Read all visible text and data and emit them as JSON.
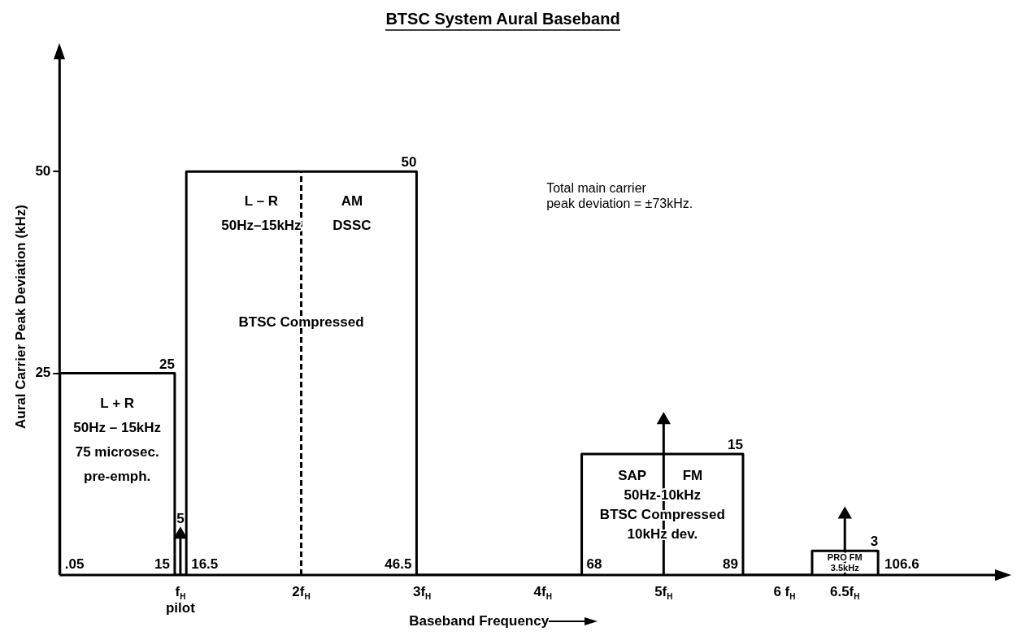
{
  "chart_data": {
    "type": "histogram",
    "title": "BTSC System Aural Baseband",
    "xlabel": "Baseband Frequency",
    "ylabel": "Aural Carrier Peak Deviation (kHz)",
    "bins": [
      0.0032,
      0.953,
      1.049,
      2.955,
      4.322,
      5.657,
      6.229,
      6.775
    ],
    "values": [
      25,
      0,
      50,
      0,
      15,
      0,
      3
    ],
    "value_labels": [
      "25",
      null,
      "50",
      null,
      "15",
      null,
      "3"
    ],
    "color": "#000000",
    "series": [
      {
        "type": "lollipop",
        "x": [
          1,
          5,
          6.5
        ],
        "values": [
          5,
          19.2,
          7.5
        ],
        "value_labels": [
          "5",
          null,
          null
        ],
        "color": "#000000",
        "marker": "triangle"
      }
    ],
    "xlim": [
      0,
      7.75
    ],
    "ylim": [
      0,
      64
    ],
    "xticks": [
      {
        "value": 1,
        "label": "f$_{H}$\npilot"
      },
      {
        "value": 2,
        "label": "2f$_{H}$"
      },
      {
        "value": 3,
        "label": "3f$_{H}$"
      },
      {
        "value": 4,
        "label": "4f$_{H}$"
      },
      {
        "value": 5,
        "label": "5f$_{H}$"
      },
      {
        "value": 6,
        "label": "6 f$_{H}$"
      },
      {
        "value": 6.5,
        "label": "6.5f$_{H}$"
      }
    ],
    "yticks": [
      25,
      50
    ],
    "grid": false,
    "ref_lines": [
      {
        "axis": "x",
        "value": 2,
        "line_style": "dashed",
        "color": "#000000"
      }
    ],
    "annotations": [
      {
        "text": "L + R\n50Hz – 15kHz\n75 microsec.\npre-emph.",
        "x": 0.477,
        "y": 25
      },
      {
        "text": "L – R\n50Hz–15kHz",
        "x": 1.67,
        "y": 50
      },
      {
        "text": "AM\nDSSC",
        "x": 2.42,
        "y": 50
      },
      {
        "text": "BTSC Compressed",
        "x": 2,
        "y": 30.8
      },
      {
        "text": "SAP",
        "x": 4.74,
        "y": 15
      },
      {
        "text": "FM",
        "x": 5.24,
        "y": 15
      },
      {
        "text": "50Hz-10kHz\nBTSC Compressed\n10kHz dev.",
        "x": 4.99,
        "y": 15
      },
      {
        "text": "PRO FM\n3.5kHz",
        "x": 6.5,
        "y": 3
      },
      {
        "text": ".05",
        "x": 0.0032,
        "y": 0
      },
      {
        "text": "15",
        "x": 0.953,
        "y": 0
      },
      {
        "text": "16.5",
        "x": 1.049,
        "y": 0
      },
      {
        "text": "46.5",
        "x": 2.955,
        "y": 0
      },
      {
        "text": "68",
        "x": 4.322,
        "y": 0
      },
      {
        "text": "89",
        "x": 5.657,
        "y": 0
      },
      {
        "text": "106.6",
        "x": 6.775,
        "y": 0
      },
      "Total main carrier\npeak deviation = ±73kHz."
    ]
  }
}
